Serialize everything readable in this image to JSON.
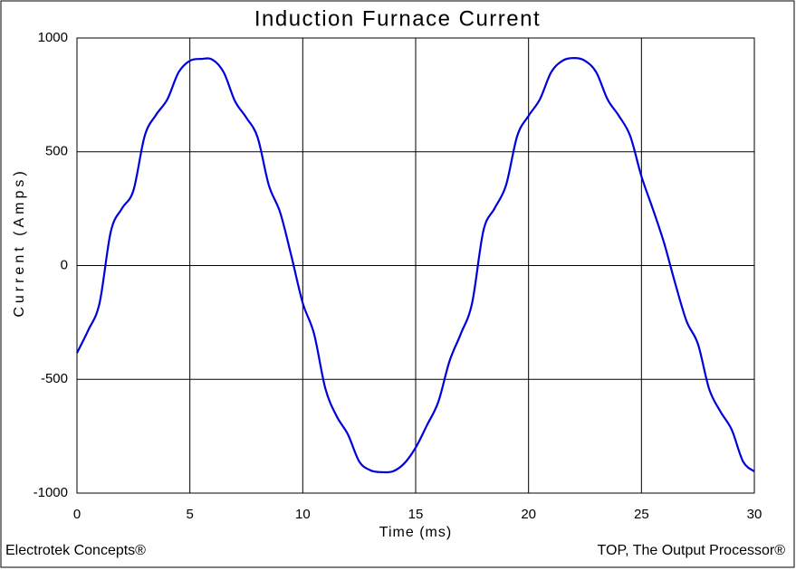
{
  "chart_data": {
    "type": "line",
    "title": "Induction Furnace Current",
    "x_label": "Time (ms)",
    "y_label": "Current (Amps)",
    "footer_left": "Electrotek Concepts®",
    "footer_right": "TOP, The Output Processor®",
    "x": [
      0,
      0.5,
      1,
      1.5,
      2,
      2.5,
      3,
      3.5,
      4,
      4.5,
      5,
      5.5,
      6,
      6.5,
      7,
      7.5,
      8,
      8.5,
      9,
      9.5,
      10,
      10.5,
      11,
      11.5,
      12,
      12.5,
      13,
      13.5,
      14,
      14.5,
      15,
      15.5,
      16,
      16.5,
      17,
      17.5,
      18,
      18.5,
      19,
      19.5,
      20,
      20.5,
      21,
      21.5,
      22,
      22.5,
      23,
      23.5,
      24,
      24.5,
      25,
      25.5,
      26,
      26.5,
      27,
      27.5,
      28,
      28.5,
      29,
      29.5,
      30
    ],
    "series": [
      {
        "name": "Current",
        "color": "#0000dd",
        "values": [
          -384,
          -284,
          -165,
          150,
          252,
          330,
          570,
          662,
          730,
          849,
          900,
          908,
          905,
          849,
          722,
          650,
          563,
          352,
          233,
          40,
          -165,
          -300,
          -540,
          -662,
          -742,
          -861,
          -900,
          -908,
          -904,
          -869,
          -800,
          -702,
          -600,
          -420,
          -300,
          -165,
          153,
          252,
          352,
          570,
          658,
          730,
          849,
          900,
          912,
          900,
          849,
          730,
          658,
          570,
          392,
          250,
          100,
          -80,
          -245,
          -344,
          -543,
          -642,
          -722,
          -861,
          -905
        ]
      }
    ],
    "xlim": [
      0,
      30
    ],
    "xticks": [
      0,
      5,
      10,
      15,
      20,
      25,
      30
    ],
    "ylim": [
      -1000,
      1000
    ],
    "yticks": [
      -1000,
      -500,
      0,
      500,
      1000
    ],
    "grid": true
  }
}
